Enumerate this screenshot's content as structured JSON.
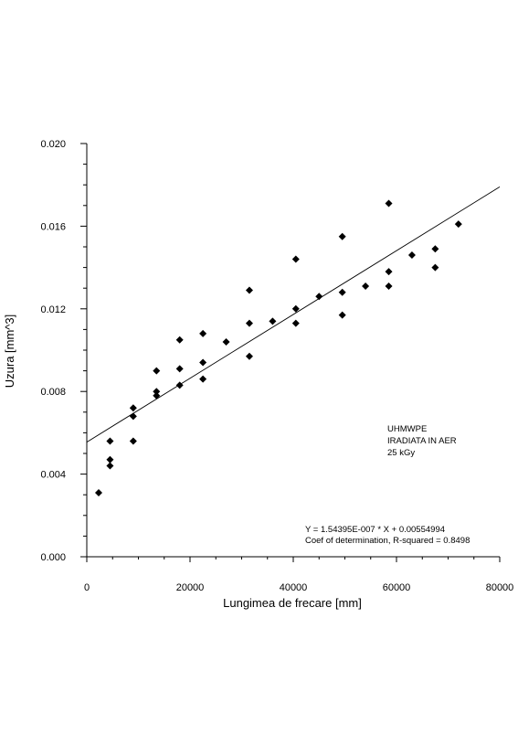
{
  "chart_data": {
    "type": "scatter",
    "title": "",
    "xlabel": "Lungimea de frecare [mm]",
    "ylabel": "Uzura [mm^3]",
    "xlim": [
      0,
      80000
    ],
    "ylim": [
      0,
      0.02
    ],
    "x_ticks": [
      "0",
      "20000",
      "40000",
      "60000",
      "80000"
    ],
    "y_ticks": [
      "0.000",
      "0.004",
      "0.008",
      "0.012",
      "0.016",
      "0.020"
    ],
    "grid": false,
    "legend": null,
    "marker_color": "#000000",
    "points": [
      [
        2300,
        0.0031
      ],
      [
        4500,
        0.0044
      ],
      [
        4500,
        0.0047
      ],
      [
        4500,
        0.0056
      ],
      [
        9000,
        0.0056
      ],
      [
        9000,
        0.0068
      ],
      [
        9000,
        0.0072
      ],
      [
        13500,
        0.0078
      ],
      [
        13500,
        0.008
      ],
      [
        13500,
        0.009
      ],
      [
        18000,
        0.0083
      ],
      [
        18000,
        0.0091
      ],
      [
        18000,
        0.0105
      ],
      [
        22500,
        0.0086
      ],
      [
        22500,
        0.0094
      ],
      [
        22500,
        0.0108
      ],
      [
        27000,
        0.0104
      ],
      [
        31500,
        0.0097
      ],
      [
        31500,
        0.0113
      ],
      [
        31500,
        0.0129
      ],
      [
        36000,
        0.0114
      ],
      [
        40500,
        0.0113
      ],
      [
        40500,
        0.012
      ],
      [
        40500,
        0.0144
      ],
      [
        45000,
        0.0126
      ],
      [
        49500,
        0.0117
      ],
      [
        49500,
        0.0128
      ],
      [
        49500,
        0.0155
      ],
      [
        54000,
        0.0131
      ],
      [
        58500,
        0.0131
      ],
      [
        58500,
        0.0138
      ],
      [
        58500,
        0.0171
      ],
      [
        63000,
        0.0146
      ],
      [
        67500,
        0.014
      ],
      [
        67500,
        0.0149
      ],
      [
        72000,
        0.0161
      ]
    ],
    "fit_line": {
      "slope": 1.54395e-07,
      "intercept": 0.00554994,
      "x_range": [
        0,
        80000
      ]
    },
    "annotations": {
      "sample_lines": [
        "UHMWPE",
        "IRADIATA IN AER",
        "25 kGy"
      ],
      "equation": "Y = 1.54395E-007 * X + 0.00554994",
      "r_squared": "Coef of determination, R-squared = 0.8498"
    }
  }
}
